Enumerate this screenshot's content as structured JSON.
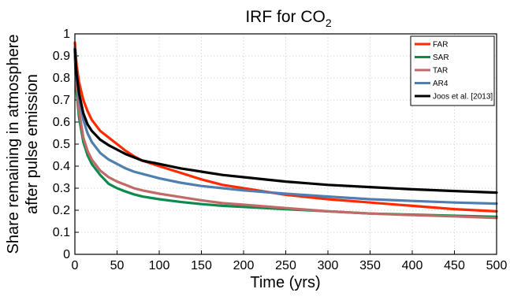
{
  "chart_data": {
    "type": "line",
    "title_main": "IRF for CO",
    "title_sub": "2",
    "xlabel": "Time (yrs)",
    "ylabel_line1": "Share remaining in atmosphere",
    "ylabel_line2": "after pulse emission",
    "xlim": [
      0,
      500
    ],
    "ylim": [
      0,
      1
    ],
    "xticks": [
      "0",
      "50",
      "100",
      "150",
      "200",
      "250",
      "300",
      "350",
      "400",
      "450",
      "500"
    ],
    "yticks": [
      "0",
      "0.1",
      "0.2",
      "0.3",
      "0.4",
      "0.5",
      "0.6",
      "0.7",
      "0.8",
      "0.9",
      "1"
    ],
    "grid": true,
    "legend_position": "top-right",
    "x": [
      0,
      2,
      5,
      10,
      15,
      20,
      30,
      40,
      50,
      60,
      70,
      80,
      100,
      125,
      150,
      175,
      200,
      250,
      300,
      350,
      400,
      450,
      500
    ],
    "series": [
      {
        "name": "FAR",
        "color": "#ff2a00",
        "values": [
          0.96,
          0.86,
          0.78,
          0.7,
          0.65,
          0.61,
          0.56,
          0.53,
          0.5,
          0.47,
          0.445,
          0.425,
          0.4,
          0.37,
          0.34,
          0.315,
          0.3,
          0.27,
          0.25,
          0.235,
          0.22,
          0.205,
          0.195
        ]
      },
      {
        "name": "SAR",
        "color": "#0e8a4f",
        "values": [
          0.9,
          0.74,
          0.62,
          0.51,
          0.45,
          0.41,
          0.36,
          0.32,
          0.3,
          0.285,
          0.272,
          0.262,
          0.25,
          0.238,
          0.228,
          0.22,
          0.215,
          0.205,
          0.195,
          0.185,
          0.18,
          0.175,
          0.17
        ]
      },
      {
        "name": "TAR",
        "color": "#c06b68",
        "values": [
          0.92,
          0.77,
          0.65,
          0.53,
          0.47,
          0.43,
          0.38,
          0.35,
          0.33,
          0.315,
          0.3,
          0.29,
          0.275,
          0.26,
          0.245,
          0.232,
          0.225,
          0.21,
          0.195,
          0.185,
          0.178,
          0.172,
          0.165
        ]
      },
      {
        "name": "AR4",
        "color": "#4f7fb0",
        "values": [
          0.94,
          0.81,
          0.71,
          0.61,
          0.55,
          0.51,
          0.46,
          0.43,
          0.41,
          0.39,
          0.375,
          0.365,
          0.345,
          0.325,
          0.31,
          0.3,
          0.29,
          0.275,
          0.262,
          0.25,
          0.242,
          0.235,
          0.23
        ]
      },
      {
        "name": "Joos et al. [2013]",
        "color": "#000000",
        "values": [
          0.93,
          0.82,
          0.73,
          0.64,
          0.59,
          0.56,
          0.52,
          0.495,
          0.475,
          0.455,
          0.44,
          0.425,
          0.41,
          0.39,
          0.375,
          0.36,
          0.35,
          0.33,
          0.315,
          0.305,
          0.295,
          0.287,
          0.28
        ]
      }
    ]
  }
}
